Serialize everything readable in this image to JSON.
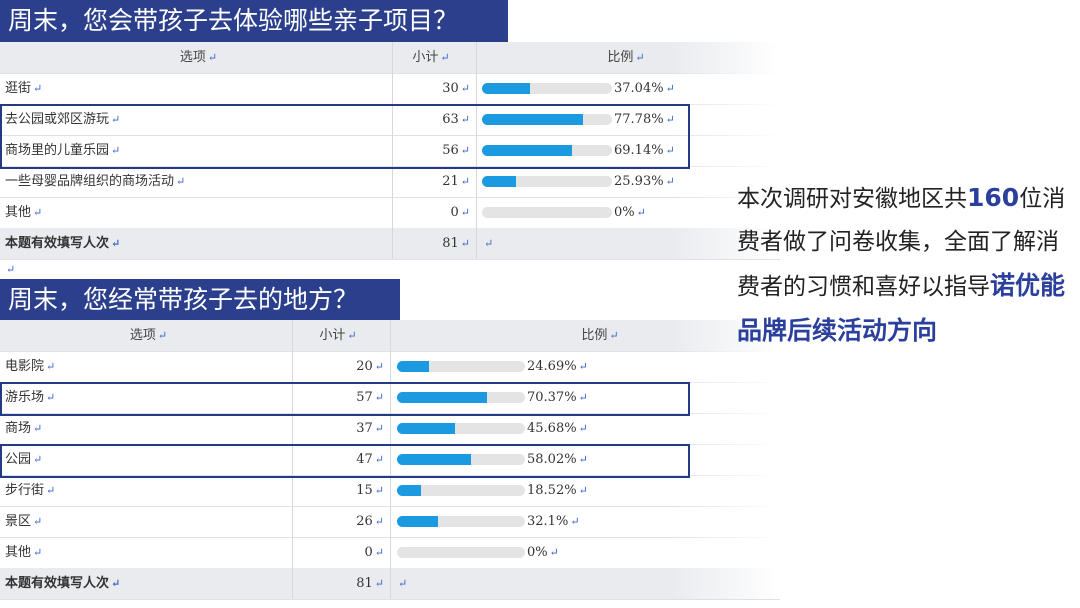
{
  "survey1": {
    "title": "周末，您会带孩子去体验哪些亲子项目？",
    "headers": {
      "option": "选项",
      "count": "小计",
      "ratio": "比例"
    },
    "rows": [
      {
        "label": "逛街",
        "count": "30",
        "pct": "37.04%",
        "value": 37.04
      },
      {
        "label": "去公园或郊区游玩",
        "count": "63",
        "pct": "77.78%",
        "value": 77.78
      },
      {
        "label": "商场里的儿童乐园",
        "count": "56",
        "pct": "69.14%",
        "value": 69.14
      },
      {
        "label": "一些母婴品牌组织的商场活动",
        "count": "21",
        "pct": "25.93%",
        "value": 25.93
      },
      {
        "label": "其他",
        "count": "0",
        "pct": "0%",
        "value": 0
      }
    ],
    "total": {
      "label": "本题有效填写人次",
      "count": "81"
    }
  },
  "survey2": {
    "title": "周末，您经常带孩子去的地方？",
    "headers": {
      "option": "选项",
      "count": "小计",
      "ratio": "比例"
    },
    "rows": [
      {
        "label": "电影院",
        "count": "20",
        "pct": "24.69%",
        "value": 24.69
      },
      {
        "label": "游乐场",
        "count": "57",
        "pct": "70.37%",
        "value": 70.37
      },
      {
        "label": "商场",
        "count": "37",
        "pct": "45.68%",
        "value": 45.68
      },
      {
        "label": "公园",
        "count": "47",
        "pct": "58.02%",
        "value": 58.02
      },
      {
        "label": "步行街",
        "count": "15",
        "pct": "18.52%",
        "value": 18.52
      },
      {
        "label": "景区",
        "count": "26",
        "pct": "32.1%",
        "value": 32.1
      },
      {
        "label": "其他",
        "count": "0",
        "pct": "0%",
        "value": 0
      }
    ],
    "total": {
      "label": "本题有效填写人次",
      "count": "81"
    }
  },
  "summary": {
    "part1": "本次调研对安徽地区共",
    "number": "160",
    "part2": "位消费者做了问卷收集，全面了解消费者的习惯和喜好以指导",
    "brand": "诺优能品牌后续活动方向"
  },
  "colors": {
    "title_bg": "#2b3f8c",
    "bar": "#1b9ae2",
    "track": "#e4e4e4",
    "highlight": "#243a86"
  }
}
